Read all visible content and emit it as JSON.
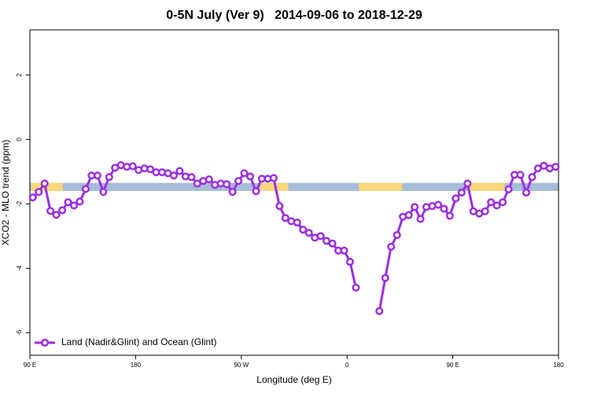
{
  "chart_data": {
    "type": "line",
    "title": "0-5N July (Ver 9)   2014-09-06 to 2018-12-29",
    "xlabel": "Longitude (deg E)",
    "ylabel": "XCO2 - MLO trend (ppm)",
    "xlim": [
      90,
      540
    ],
    "ylim": [
      -6.7,
      3.4
    ],
    "xticks": [
      {
        "value": 90,
        "label": "90 E"
      },
      180,
      {
        "value": 270,
        "label": "90 W"
      },
      {
        "value": 360,
        "label": "0"
      },
      {
        "value": 450,
        "label": "90 E"
      },
      {
        "value": 540,
        "label": "180"
      }
    ],
    "yticks": [
      -6,
      -4,
      -2,
      0,
      2
    ],
    "legend": "bottom-left",
    "band": {
      "ylim": [
        -1.6,
        -1.35
      ],
      "color": "#a7bcd6",
      "land_color": "#f7d77c",
      "land": [
        [
          91,
          118
        ],
        [
          286,
          310
        ],
        [
          370,
          407
        ],
        [
          464,
          494
        ]
      ]
    },
    "x": [
      92.5,
      97.5,
      102.5,
      107.5,
      112.5,
      117.5,
      122.5,
      127.5,
      132.5,
      137.5,
      142.5,
      147.5,
      152.5,
      157.5,
      162.5,
      167.5,
      172.5,
      177.5,
      182.5,
      187.5,
      192.5,
      197.5,
      202.5,
      207.5,
      212.5,
      217.5,
      222.5,
      227.5,
      232.5,
      237.5,
      242.5,
      247.5,
      252.5,
      257.5,
      262.5,
      267.5,
      272.5,
      277.5,
      282.5,
      287.5,
      292.5,
      297.5,
      302.5,
      307.5,
      312.5,
      317.5,
      322.5,
      327.5,
      332.5,
      337.5,
      342.5,
      347.5,
      352.5,
      357.5,
      362.5,
      367.5,
      372.5,
      377.5,
      382.5,
      387.5,
      392.5,
      397.5,
      402.5,
      407.5,
      412.5,
      417.5,
      422.5,
      427.5,
      432.5,
      437.5,
      442.5,
      447.5,
      452.5,
      457.5,
      462.5,
      467.5,
      472.5,
      477.5,
      482.5,
      487.5,
      492.5,
      497.5,
      502.5,
      507.5,
      512.5,
      517.5,
      522.5,
      527.5,
      532.5,
      537.5
    ],
    "series": [
      {
        "name": "Land (Nadir&Glint) and Ocean (Glint)",
        "color": "#9b2fe0",
        "values": [
          -1.8,
          -1.63,
          -1.37,
          -2.22,
          -2.34,
          -2.2,
          -1.95,
          -2.05,
          -1.93,
          -1.54,
          -1.12,
          -1.12,
          -1.63,
          -1.17,
          -0.88,
          -0.8,
          -0.85,
          -0.83,
          -0.95,
          -0.9,
          -0.93,
          -1.02,
          -1.02,
          -1.05,
          -1.12,
          -0.98,
          -1.15,
          -1.17,
          -1.37,
          -1.29,
          -1.24,
          -1.41,
          -1.37,
          -1.39,
          -1.63,
          -1.29,
          -1.05,
          -1.15,
          -1.61,
          -1.22,
          -1.22,
          -1.2,
          -2.07,
          -2.44,
          -2.54,
          -2.58,
          -2.8,
          -2.9,
          -3.05,
          -3.0,
          -3.15,
          -3.23,
          -3.45,
          -3.45,
          -3.8,
          -4.6,
          null,
          null,
          null,
          -5.33,
          -4.3,
          -3.33,
          -2.97,
          -2.4,
          -2.35,
          -2.1,
          -2.47,
          -2.1,
          -2.07,
          -2.03,
          -2.15,
          -2.37,
          -1.83,
          -1.65,
          -1.37,
          -2.23,
          -2.3,
          -2.23,
          -1.95,
          -2.05,
          -1.95,
          -1.55,
          -1.1,
          -1.1,
          -1.65,
          -1.17,
          -0.9,
          -0.82,
          -0.9,
          -0.85
        ]
      }
    ]
  }
}
